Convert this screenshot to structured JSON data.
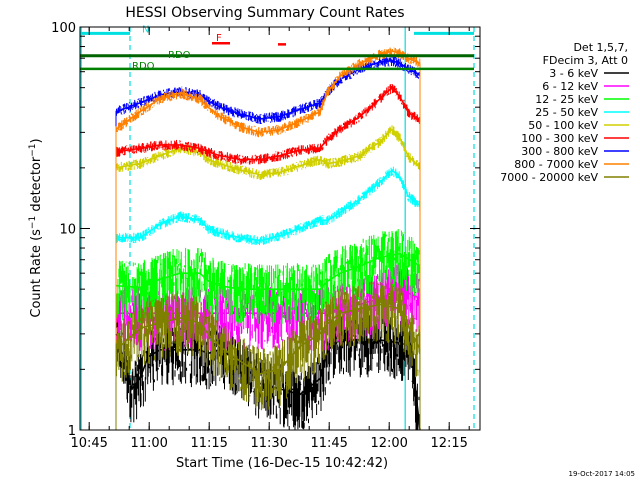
{
  "chart_data": {
    "type": "line",
    "title": "HESSI Observing Summary Count Rates",
    "xlabel": "Start Time (16-Dec-15 10:42:42)",
    "ylabel": "Count Rate (s⁻¹ detector⁻¹)",
    "ylabel_parts": {
      "main": "Count Rate (s",
      "sup1": "−1",
      "mid": " detector",
      "sup2": "−1",
      "end": ")"
    },
    "x_unit": "minutes since 10:42:42",
    "xlim": [
      0,
      100
    ],
    "ylim": [
      1,
      100
    ],
    "yscale": "log",
    "x_ticks": [
      {
        "label": "10:45",
        "x": 2.3
      },
      {
        "label": "11:00",
        "x": 17.3
      },
      {
        "label": "11:15",
        "x": 32.3
      },
      {
        "label": "11:30",
        "x": 47.3
      },
      {
        "label": "11:45",
        "x": 62.3
      },
      {
        "label": "12:00",
        "x": 77.3
      },
      {
        "label": "12:15",
        "x": 92.3
      }
    ],
    "y_ticks": [
      {
        "label": "1",
        "y": 1
      },
      {
        "label": "10",
        "y": 10
      },
      {
        "label": "100",
        "y": 100
      }
    ],
    "legend": {
      "placement": "right",
      "header": [
        "Det 1,5,7,",
        "FDecim 3, Att 0"
      ]
    },
    "annotations": [
      {
        "text": "N",
        "x": 15.5,
        "y": 94,
        "color": "#00e0e0"
      },
      {
        "text": "RDO",
        "x": 22.0,
        "y": 70,
        "color": "#008000"
      },
      {
        "text": "RDO",
        "x": 13.0,
        "y": 62,
        "color": "#008000"
      },
      {
        "text": "F",
        "x": 34.0,
        "y": 85,
        "color": "#ff0000"
      }
    ],
    "markers": {
      "eclipse_bar": [
        [
          0,
          12.5
        ],
        [
          83.5,
          98.5
        ]
      ],
      "eclipse_y": 93,
      "saa_line_y": 72,
      "rdo_segments": [
        [
          0,
          10
        ],
        [
          10,
          20
        ],
        [
          20,
          60
        ],
        [
          60,
          98.5
        ]
      ],
      "cyan_solid": [
        0.3,
        81.3
      ],
      "cyan_dashed": [
        12.5,
        98.5
      ],
      "flare_marks": [
        [
          33.0,
          37.5,
          83
        ],
        [
          49.5,
          51.5,
          82
        ]
      ]
    },
    "series": [
      {
        "name": "3 - 6 keV",
        "color": "#000000",
        "x": [
          9,
          11,
          13,
          15,
          17,
          20,
          25,
          30,
          32,
          35,
          40,
          45,
          50,
          55,
          60,
          62,
          65,
          70,
          75,
          80,
          83,
          84,
          85
        ],
        "y": [
          3,
          2.2,
          1.6,
          1.8,
          2.3,
          2.5,
          2.5,
          2.5,
          2.4,
          2.5,
          2.2,
          1.7,
          1.6,
          1.5,
          1.8,
          2.5,
          2.8,
          2.8,
          2.8,
          2.7,
          2.6,
          1.5,
          1
        ]
      },
      {
        "name": "6 - 12 keV",
        "color": "#ff00ff",
        "x": [
          9,
          15,
          20,
          25,
          30,
          32,
          35,
          40,
          45,
          50,
          55,
          60,
          62,
          65,
          70,
          75,
          80,
          85
        ],
        "y": [
          3.8,
          3.8,
          3.8,
          3.8,
          3.8,
          3.8,
          3.8,
          3.8,
          3.8,
          3.8,
          3.8,
          3.8,
          3.8,
          4.0,
          4.2,
          4.5,
          5,
          4.5
        ]
      },
      {
        "name": "12 - 25 keV",
        "color": "#00ff00",
        "x": [
          9,
          15,
          20,
          25,
          30,
          32,
          35,
          40,
          45,
          50,
          55,
          60,
          62,
          65,
          70,
          75,
          80,
          85
        ],
        "y": [
          5.2,
          5.1,
          5.6,
          6.0,
          6.0,
          5.5,
          5.2,
          5.0,
          5.0,
          5.0,
          5.0,
          5.0,
          5.5,
          6.0,
          6.5,
          7.2,
          7.5,
          6.5
        ]
      },
      {
        "name": "25 - 50 keV",
        "color": "#00ffff",
        "x": [
          9,
          15,
          20,
          25,
          30,
          32,
          35,
          40,
          45,
          50,
          55,
          60,
          62,
          65,
          70,
          75,
          78,
          80,
          82,
          85
        ],
        "y": [
          9,
          9,
          10.5,
          11.5,
          11,
          10,
          9.5,
          9,
          8.7,
          9.2,
          10,
          11,
          11,
          12,
          14,
          17,
          19.5,
          18,
          14.5,
          13
        ]
      },
      {
        "name": "50 - 100 keV",
        "color": "#d0d000",
        "x": [
          9,
          15,
          20,
          25,
          30,
          32,
          35,
          40,
          45,
          50,
          55,
          60,
          62,
          65,
          70,
          75,
          78,
          80,
          82,
          85
        ],
        "y": [
          20,
          21,
          23,
          25,
          24,
          22,
          21,
          19.5,
          18.5,
          19,
          20.5,
          22,
          21,
          21.5,
          23,
          27,
          31,
          28,
          23,
          20
        ]
      },
      {
        "name": "100 - 300 keV",
        "color": "#ff0000",
        "x": [
          9,
          15,
          20,
          25,
          30,
          32,
          35,
          40,
          45,
          50,
          55,
          60,
          62,
          65,
          70,
          75,
          78,
          80,
          82,
          85
        ],
        "y": [
          24,
          25,
          26,
          26,
          25,
          24,
          23,
          22,
          22,
          23,
          24.5,
          25,
          28,
          31,
          36,
          44,
          50,
          45,
          38,
          34
        ]
      },
      {
        "name": "300 - 800 keV",
        "color": "#0000ff",
        "x": [
          9,
          15,
          20,
          25,
          30,
          32,
          35,
          40,
          45,
          50,
          55,
          60,
          62,
          65,
          70,
          75,
          78,
          80,
          82,
          85
        ],
        "y": [
          38,
          42,
          46,
          48,
          46,
          43,
          40,
          37,
          35,
          36,
          39,
          42,
          48,
          55,
          62,
          67,
          68,
          66,
          62,
          58
        ]
      },
      {
        "name": "800 - 7000 keV",
        "color": "#ff8000",
        "x": [
          9,
          15,
          20,
          25,
          30,
          32,
          35,
          40,
          45,
          50,
          55,
          60,
          62,
          65,
          70,
          75,
          78,
          80,
          82,
          85
        ],
        "y": [
          31,
          38,
          44,
          47,
          44,
          40,
          36,
          32,
          30,
          31,
          34,
          38,
          48,
          57,
          66,
          73,
          76,
          74,
          70,
          66
        ]
      },
      {
        "name": "7000 - 20000 keV",
        "color": "#808000",
        "x": [
          9,
          15,
          20,
          25,
          30,
          32,
          35,
          40,
          45,
          50,
          55,
          60,
          62,
          65,
          70,
          75,
          80,
          85
        ],
        "y": [
          2.5,
          3.2,
          3.4,
          3.6,
          3.4,
          3.0,
          2.6,
          2.2,
          1.9,
          2.0,
          2.6,
          3.0,
          3.4,
          3.8,
          4.0,
          4.2,
          4.0,
          2.5
        ]
      }
    ]
  },
  "footer": {
    "timestamp": "19-Oct-2017 14:05"
  }
}
